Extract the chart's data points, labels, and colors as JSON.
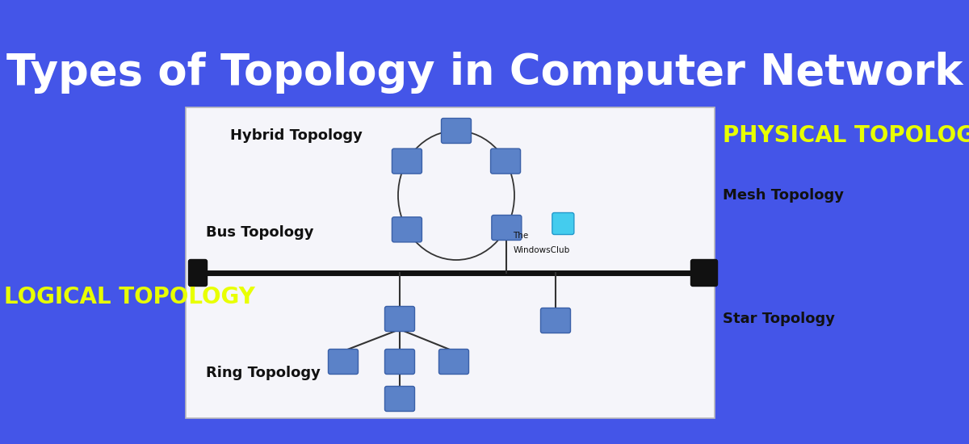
{
  "title": "Types of Topology in Computer Network",
  "bg_color": "#4455e8",
  "title_color": "#ffffff",
  "title_fontsize": 38,
  "panel_bg": "#f5f5fa",
  "panel_border": "#bbbbbb",
  "node_color": "#5b82c8",
  "node_edge": "#3a60a8",
  "labels": {
    "hybrid": "Hybrid Topology",
    "bus": "Bus Topology",
    "logical": "LOGICAL TOPOLOGY",
    "ring": "Ring Topology",
    "physical": "PHYSICAL TOPOLOGY",
    "mesh": "Mesh Topology",
    "star": "Star Topology",
    "watermark_line1": "The",
    "watermark_line2": "WindowsClub"
  },
  "label_colors": {
    "hybrid": "#111111",
    "bus": "#111111",
    "logical": "#e8ff00",
    "ring": "#111111",
    "physical": "#e8ff00",
    "mesh": "#111111",
    "star": "#111111",
    "watermark": "#111111"
  },
  "bus_line_color": "#111111",
  "line_color": "#333333",
  "cyan_node_color": "#44ccee",
  "cyan_node_edge": "#2299cc"
}
